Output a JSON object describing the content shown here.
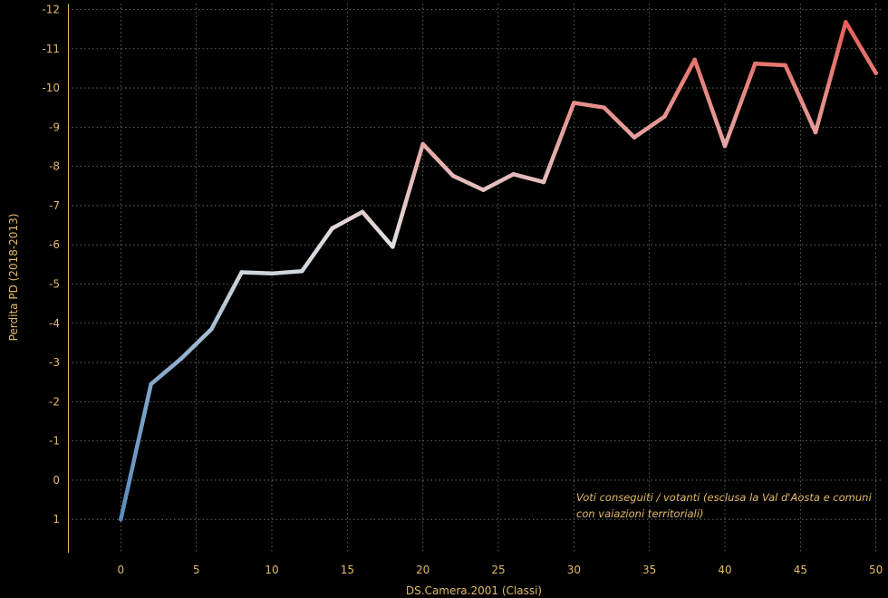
{
  "chart_data": {
    "type": "line",
    "xlabel": "DS.Camera.2001 (Classi)",
    "ylabel": "Perdita PD (2018-2013)",
    "xlim": [
      -3.5,
      50.5
    ],
    "ylim": [
      1.85,
      -12.15
    ],
    "y_reversed": true,
    "grid": true,
    "x_ticks": [
      0,
      5,
      10,
      15,
      20,
      25,
      30,
      35,
      40,
      45,
      50
    ],
    "y_ticks": [
      1,
      0,
      -1,
      -2,
      -3,
      -4,
      -5,
      -6,
      -7,
      -8,
      -9,
      -10,
      -11,
      -12
    ],
    "x_tick_labels": [
      "0",
      "5",
      "10",
      "15",
      "20",
      "25",
      "30",
      "35",
      "40",
      "45",
      "50"
    ],
    "y_tick_labels": [
      "1",
      "0",
      "-1",
      "-2",
      "-3",
      "-4",
      "-5",
      "-6",
      "-7",
      "-8",
      "-9",
      "-10",
      "-11",
      "-12"
    ],
    "annotation": [
      "Voti conseguiti / votanti (esclusa la Val d'Aosta e comuni",
      "con vaiazioni territoriali)"
    ],
    "color_scale": {
      "low": "#5b8dbf",
      "mid": "#e2e2e2",
      "high": "#e8564e",
      "domain": [
        -1,
        -6,
        -12
      ]
    },
    "series": [
      {
        "x": [
          0,
          2,
          4,
          6,
          8,
          10,
          12,
          14,
          16,
          18,
          20,
          22,
          24,
          26,
          28,
          30,
          32,
          34,
          36,
          38,
          40,
          42,
          44,
          46,
          48,
          50
        ],
        "values": [
          1.0,
          -2.45,
          -3.1,
          -3.85,
          -5.3,
          -5.27,
          -5.33,
          -6.42,
          -6.84,
          -5.95,
          -8.57,
          -7.76,
          -7.4,
          -7.8,
          -7.6,
          -9.62,
          -9.5,
          -8.74,
          -9.27,
          -10.72,
          -8.52,
          -10.62,
          -10.58,
          -8.87,
          -11.68,
          -10.38
        ]
      }
    ]
  }
}
